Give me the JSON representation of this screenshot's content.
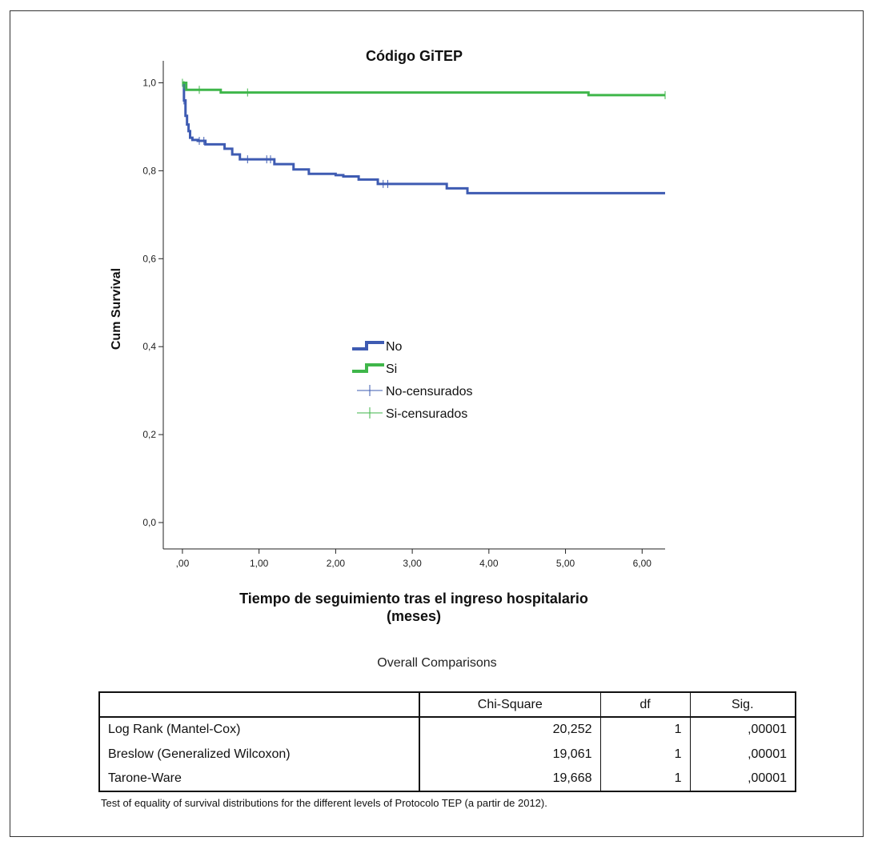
{
  "chart_data": {
    "type": "line",
    "title": "Código GiTEP",
    "xlabel": "Tiempo de seguimiento tras el ingreso hospitalario\n(meses)",
    "ylabel": "Cum Survival",
    "xlim": [
      -0.25,
      6.3
    ],
    "ylim": [
      -0.06,
      1.05
    ],
    "x_ticks": [
      0,
      1,
      2,
      3,
      4,
      5,
      6
    ],
    "x_tick_labels": [
      ",00",
      "1,00",
      "2,00",
      "3,00",
      "4,00",
      "5,00",
      "6,00"
    ],
    "y_ticks": [
      0,
      0.2,
      0.4,
      0.6,
      0.8,
      1.0
    ],
    "y_tick_labels": [
      "0,0",
      "0,2",
      "0,4",
      "0,6",
      "0,8",
      "1,0"
    ],
    "grid": false,
    "legend": {
      "placement": "center",
      "entries": [
        "No",
        "Si",
        "No-censurados",
        "Si-censurados"
      ]
    },
    "series": [
      {
        "name": "No",
        "color": "#3e5bb2",
        "step": "post",
        "x": [
          0,
          0.02,
          0.04,
          0.06,
          0.08,
          0.1,
          0.13,
          0.16,
          0.2,
          0.3,
          0.55,
          0.65,
          0.75,
          1.2,
          1.45,
          1.65,
          2.0,
          2.1,
          2.3,
          2.55,
          3.45,
          3.72,
          6.3
        ],
        "y": [
          1.0,
          0.96,
          0.925,
          0.905,
          0.89,
          0.875,
          0.87,
          0.87,
          0.868,
          0.86,
          0.85,
          0.837,
          0.826,
          0.815,
          0.803,
          0.793,
          0.79,
          0.787,
          0.78,
          0.77,
          0.76,
          0.749,
          0.749
        ]
      },
      {
        "name": "Si",
        "color": "#3fb64a",
        "step": "post",
        "x": [
          0,
          0.05,
          0.5,
          5.3,
          6.3
        ],
        "y": [
          1.0,
          0.984,
          0.978,
          0.972,
          0.972
        ]
      }
    ],
    "censored": [
      {
        "name": "No-censurados",
        "color": "#3e5bb2",
        "x": [
          0.02,
          0.22,
          0.28,
          0.85,
          1.1,
          1.15,
          2.62,
          2.68
        ],
        "y": [
          0.96,
          0.868,
          0.868,
          0.826,
          0.826,
          0.826,
          0.77,
          0.77
        ]
      },
      {
        "name": "Si-censurados",
        "color": "#3fb64a",
        "x": [
          0.0,
          0.02,
          0.22,
          0.85,
          6.3
        ],
        "y": [
          1.0,
          0.995,
          0.984,
          0.978,
          0.972
        ]
      }
    ]
  },
  "table": {
    "title": "Overall Comparisons",
    "columns": [
      "",
      "Chi-Square",
      "df",
      "Sig."
    ],
    "rows": [
      {
        "label": "Log Rank (Mantel-Cox)",
        "chi_square": "20,252",
        "df": "1",
        "sig": ",00001"
      },
      {
        "label": "Breslow (Generalized Wilcoxon)",
        "chi_square": "19,061",
        "df": "1",
        "sig": ",00001"
      },
      {
        "label": "Tarone-Ware",
        "chi_square": "19,668",
        "df": "1",
        "sig": ",00001"
      }
    ],
    "footnote": "Test of equality of survival distributions for the different levels of Protocolo TEP (a partir de 2012)."
  }
}
